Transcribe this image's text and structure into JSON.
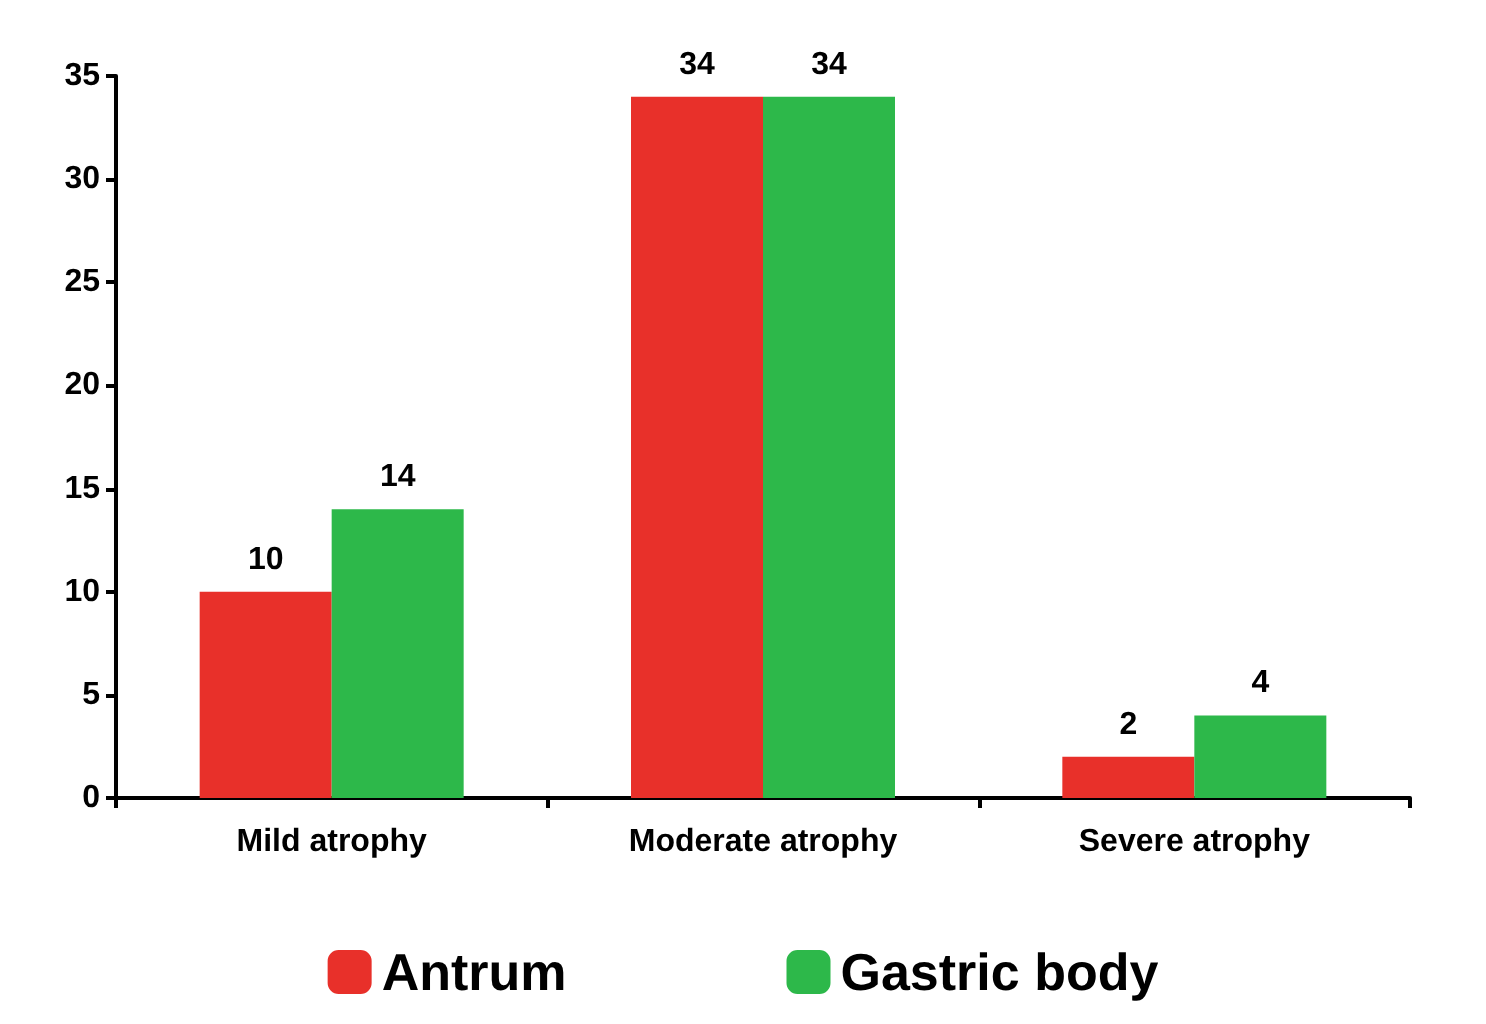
{
  "chart_data": {
    "type": "bar",
    "categories": [
      "Mild atrophy",
      "Moderate atrophy",
      "Severe atrophy"
    ],
    "series": [
      {
        "name": "Antrum",
        "color": "#e8302a",
        "values": [
          10,
          34,
          2
        ]
      },
      {
        "name": "Gastric body",
        "color": "#2db84a",
        "values": [
          14,
          34,
          4
        ]
      }
    ],
    "ylim": [
      0,
      35
    ],
    "yticks": [
      0,
      5,
      10,
      15,
      20,
      25,
      30,
      35
    ],
    "grid": false,
    "legend": "bottom",
    "data_labels": true
  }
}
